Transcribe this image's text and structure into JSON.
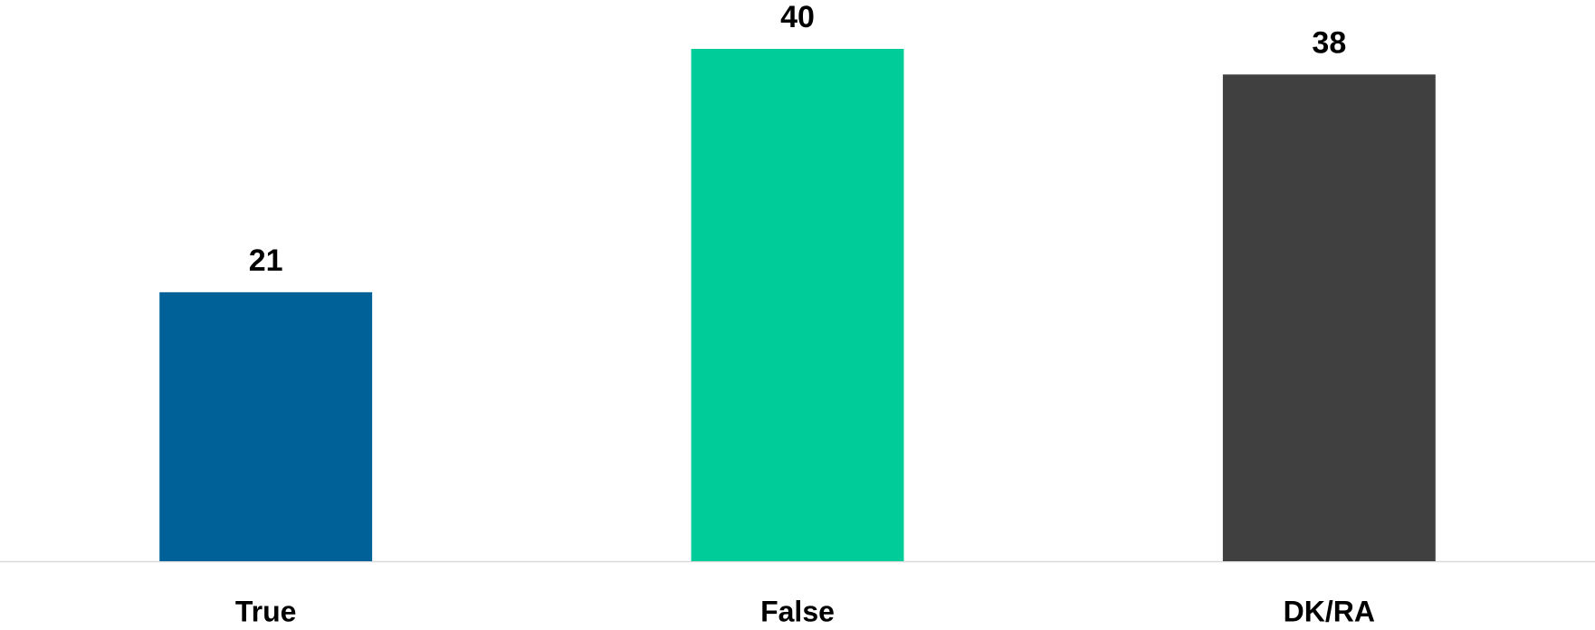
{
  "chart_data": {
    "type": "bar",
    "categories": [
      "True",
      "False",
      "DK/RA"
    ],
    "values": [
      21,
      40,
      38
    ],
    "colors": [
      "#006098",
      "#00cc99",
      "#404040"
    ]
  }
}
